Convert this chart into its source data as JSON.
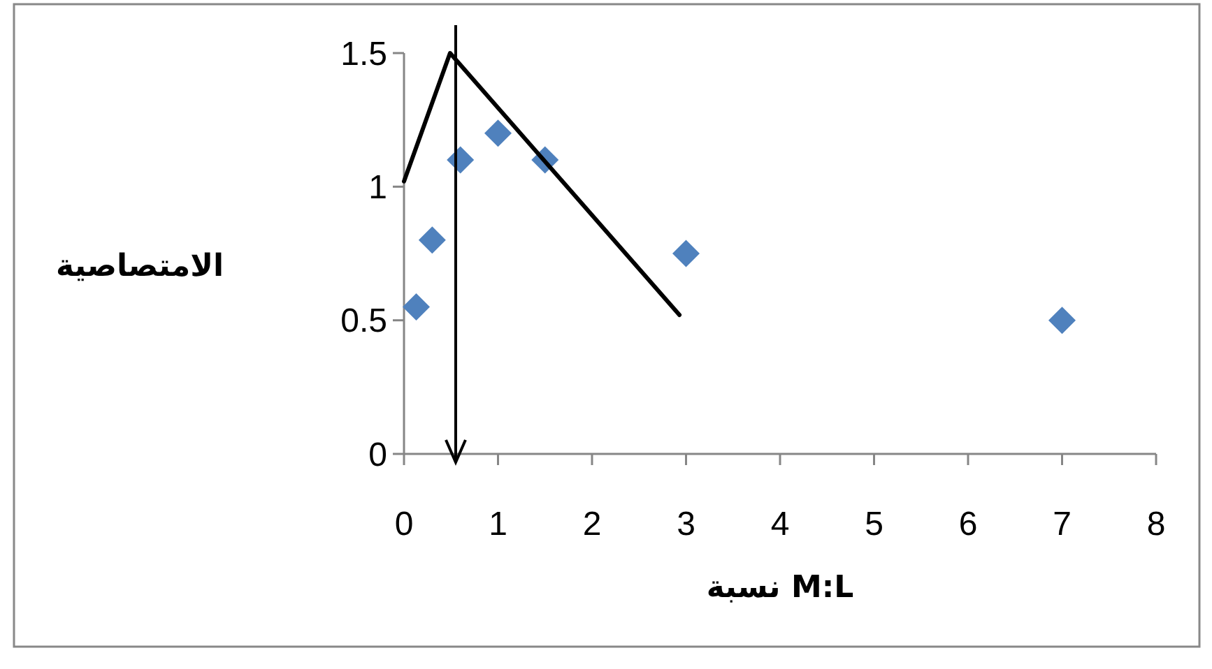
{
  "chart_data": {
    "type": "scatter",
    "xlabel": "نسبة M:L",
    "ylabel": "الامتصاصية",
    "xlim": [
      0,
      8
    ],
    "xticks": [
      0,
      1,
      2,
      3,
      4,
      5,
      6,
      7,
      8
    ],
    "ylim": [
      0,
      1.5
    ],
    "yticks": [
      0,
      0.5,
      1,
      1.5
    ],
    "grid": false,
    "marker": "diamond",
    "series": [
      {
        "color": "#4f81bd",
        "x": [
          0.13,
          0.3,
          0.6,
          1,
          1.5,
          3,
          7
        ],
        "values": [
          0.55,
          0.8,
          1.1,
          1.2,
          1.1,
          0.75,
          0.5
        ]
      },
      {
        "type": "line",
        "color": "#000000",
        "marker": "none",
        "line_style": "solid",
        "x": [
          0,
          0.49,
          2.93
        ],
        "values": [
          1.02,
          1.5,
          0.52
        ]
      }
    ],
    "ref_lines": [
      {
        "axis": "x",
        "value": 0.55,
        "color": "#000000"
      }
    ]
  }
}
